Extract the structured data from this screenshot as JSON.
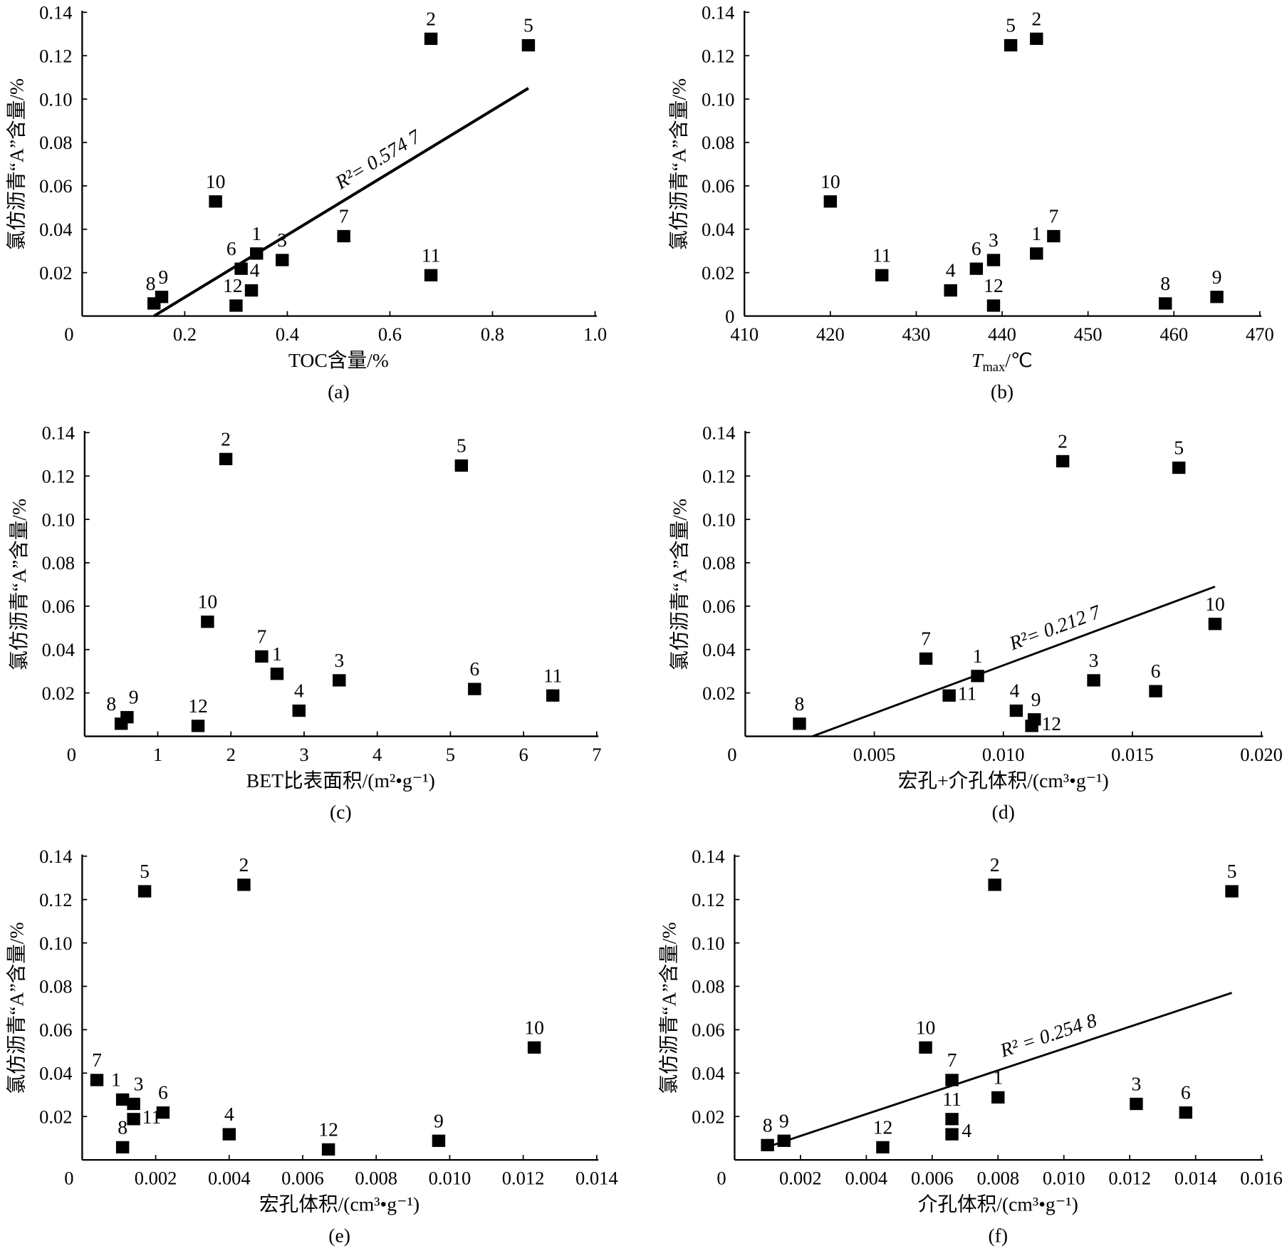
{
  "chart_data": [
    {
      "type": "scatter",
      "title": "(a)",
      "xlabel": "TOC含量/%",
      "ylabel": "氯仿沥青“A”含量/%",
      "xlim": [
        0,
        1.0
      ],
      "ylim": [
        0,
        0.14
      ],
      "xticks": [
        "0.2",
        "0.4",
        "0.6",
        "0.8",
        "1.0"
      ],
      "xtick_values": [
        0.2,
        0.4,
        0.6,
        0.8,
        1.0
      ],
      "yticks": [
        "0.02",
        "0.04",
        "0.06",
        "0.08",
        "0.10",
        "0.12",
        "0.14"
      ],
      "origin_label": "0",
      "points": [
        {
          "label": "1",
          "x": 0.34,
          "y": 0.029
        },
        {
          "label": "2",
          "x": 0.68,
          "y": 0.128
        },
        {
          "label": "3",
          "x": 0.39,
          "y": 0.026
        },
        {
          "label": "4",
          "x": 0.33,
          "y": 0.012
        },
        {
          "label": "5",
          "x": 0.87,
          "y": 0.125
        },
        {
          "label": "6",
          "x": 0.31,
          "y": 0.022
        },
        {
          "label": "7",
          "x": 0.51,
          "y": 0.037
        },
        {
          "label": "8",
          "x": 0.14,
          "y": 0.006
        },
        {
          "label": "9",
          "x": 0.155,
          "y": 0.009
        },
        {
          "label": "10",
          "x": 0.26,
          "y": 0.053
        },
        {
          "label": "11",
          "x": 0.68,
          "y": 0.019
        },
        {
          "label": "12",
          "x": 0.3,
          "y": 0.005
        }
      ],
      "fit": {
        "x": [
          0.14,
          0.87
        ],
        "y": [
          0.0,
          0.105
        ],
        "r2_label": "R²= 0.574 7"
      }
    },
    {
      "type": "scatter",
      "title": "(b)",
      "xlabel_parts": [
        "T",
        "max",
        "/℃"
      ],
      "ylabel": "氯仿沥青“A”含量/%",
      "xlim": [
        410,
        470
      ],
      "ylim": [
        0,
        0.14
      ],
      "xticks": [
        "410",
        "420",
        "430",
        "440",
        "450",
        "460",
        "470"
      ],
      "xtick_values": [
        410,
        420,
        430,
        440,
        450,
        460,
        470
      ],
      "yticks": [
        "0.02",
        "0.04",
        "0.06",
        "0.08",
        "0.10",
        "0.12",
        "0.14"
      ],
      "origin_label": "0",
      "points": [
        {
          "label": "1",
          "x": 444,
          "y": 0.029
        },
        {
          "label": "2",
          "x": 444,
          "y": 0.128
        },
        {
          "label": "3",
          "x": 439,
          "y": 0.026
        },
        {
          "label": "4",
          "x": 434,
          "y": 0.012
        },
        {
          "label": "5",
          "x": 441,
          "y": 0.125
        },
        {
          "label": "6",
          "x": 437,
          "y": 0.022
        },
        {
          "label": "7",
          "x": 446,
          "y": 0.037
        },
        {
          "label": "8",
          "x": 459,
          "y": 0.006
        },
        {
          "label": "9",
          "x": 465,
          "y": 0.009
        },
        {
          "label": "10",
          "x": 420,
          "y": 0.053
        },
        {
          "label": "11",
          "x": 426,
          "y": 0.019
        },
        {
          "label": "12",
          "x": 439,
          "y": 0.005
        }
      ]
    },
    {
      "type": "scatter",
      "title": "(c)",
      "xlabel": "BET比表面积/(m²•g⁻¹)",
      "ylabel": "氯仿沥青“A”含量/%",
      "xlim": [
        0,
        7
      ],
      "ylim": [
        0,
        0.14
      ],
      "xticks": [
        "1",
        "2",
        "3",
        "4",
        "5",
        "6",
        "7"
      ],
      "xtick_values": [
        1,
        2,
        3,
        4,
        5,
        6,
        7
      ],
      "yticks": [
        "0.02",
        "0.04",
        "0.06",
        "0.08",
        "0.10",
        "0.12",
        "0.14"
      ],
      "origin_label": "0",
      "points": [
        {
          "label": "1",
          "x": 2.63,
          "y": 0.029
        },
        {
          "label": "2",
          "x": 1.93,
          "y": 0.128
        },
        {
          "label": "3",
          "x": 3.48,
          "y": 0.026
        },
        {
          "label": "4",
          "x": 2.93,
          "y": 0.012
        },
        {
          "label": "5",
          "x": 5.15,
          "y": 0.125
        },
        {
          "label": "6",
          "x": 5.33,
          "y": 0.022
        },
        {
          "label": "7",
          "x": 2.42,
          "y": 0.037
        },
        {
          "label": "8",
          "x": 0.5,
          "y": 0.006
        },
        {
          "label": "9",
          "x": 0.58,
          "y": 0.009
        },
        {
          "label": "10",
          "x": 1.68,
          "y": 0.053
        },
        {
          "label": "11",
          "x": 6.4,
          "y": 0.019
        },
        {
          "label": "12",
          "x": 1.55,
          "y": 0.005
        }
      ]
    },
    {
      "type": "scatter",
      "title": "(d)",
      "xlabel": "宏孔+介孔体积/(cm³•g⁻¹)",
      "ylabel": "氯仿沥青“A”含量/%",
      "xlim": [
        0,
        0.02
      ],
      "ylim": [
        0,
        0.14
      ],
      "xticks": [
        "0.005",
        "0.010",
        "0.015",
        "0.020"
      ],
      "xtick_values": [
        0.005,
        0.01,
        0.015,
        0.02
      ],
      "yticks": [
        "0.02",
        "0.04",
        "0.06",
        "0.08",
        "0.10",
        "0.12",
        "0.14"
      ],
      "origin_label": "0",
      "points": [
        {
          "label": "1",
          "x": 0.009,
          "y": 0.028
        },
        {
          "label": "2",
          "x": 0.0123,
          "y": 0.127
        },
        {
          "label": "3",
          "x": 0.0135,
          "y": 0.026
        },
        {
          "label": "4",
          "x": 0.0105,
          "y": 0.012
        },
        {
          "label": "5",
          "x": 0.0168,
          "y": 0.124
        },
        {
          "label": "6",
          "x": 0.0159,
          "y": 0.021
        },
        {
          "label": "7",
          "x": 0.007,
          "y": 0.036
        },
        {
          "label": "8",
          "x": 0.0021,
          "y": 0.006
        },
        {
          "label": "9",
          "x": 0.0112,
          "y": 0.008
        },
        {
          "label": "10",
          "x": 0.0182,
          "y": 0.052
        },
        {
          "label": "11",
          "x": 0.0079,
          "y": 0.019
        },
        {
          "label": "12",
          "x": 0.0111,
          "y": 0.005
        }
      ],
      "fit": {
        "x": [
          0.0026,
          0.0182
        ],
        "y": [
          0.0,
          0.069
        ],
        "r2_label": "R²= 0.212 7"
      }
    },
    {
      "type": "scatter",
      "title": "(e)",
      "xlabel": "宏孔体积/(cm³•g⁻¹)",
      "ylabel": "氯仿沥青“A”含量/%",
      "xlim": [
        0,
        0.014
      ],
      "ylim": [
        0,
        0.14
      ],
      "xticks": [
        "0.002",
        "0.004",
        "0.006",
        "0.008",
        "0.010",
        "0.012",
        "0.014"
      ],
      "xtick_values": [
        0.002,
        0.004,
        0.006,
        0.008,
        0.01,
        0.012,
        0.014
      ],
      "yticks": [
        "0.02",
        "0.04",
        "0.06",
        "0.08",
        "0.10",
        "0.12",
        "0.14"
      ],
      "origin_label": "0",
      "points": [
        {
          "label": "1",
          "x": 0.0011,
          "y": 0.028
        },
        {
          "label": "2",
          "x": 0.0044,
          "y": 0.127
        },
        {
          "label": "3",
          "x": 0.0014,
          "y": 0.026
        },
        {
          "label": "4",
          "x": 0.004,
          "y": 0.012
        },
        {
          "label": "5",
          "x": 0.0017,
          "y": 0.124
        },
        {
          "label": "6",
          "x": 0.0022,
          "y": 0.022
        },
        {
          "label": "7",
          "x": 0.0004,
          "y": 0.037
        },
        {
          "label": "8",
          "x": 0.0011,
          "y": 0.006
        },
        {
          "label": "9",
          "x": 0.0097,
          "y": 0.009
        },
        {
          "label": "10",
          "x": 0.0123,
          "y": 0.052
        },
        {
          "label": "11",
          "x": 0.0014,
          "y": 0.019
        },
        {
          "label": "12",
          "x": 0.0067,
          "y": 0.005
        }
      ]
    },
    {
      "type": "scatter",
      "title": "(f)",
      "xlabel": "介孔体积/(cm³•g⁻¹)",
      "ylabel": "氯仿沥青“A”含量/%",
      "xlim": [
        0,
        0.016
      ],
      "ylim": [
        0,
        0.14
      ],
      "xticks": [
        "0.002",
        "0.004",
        "0.006",
        "0.008",
        "0.010",
        "0.012",
        "0.014",
        "0.016"
      ],
      "xtick_values": [
        0.002,
        0.004,
        0.006,
        0.008,
        0.01,
        0.012,
        0.014,
        0.016
      ],
      "yticks": [
        "0.02",
        "0.04",
        "0.06",
        "0.08",
        "0.10",
        "0.12",
        "0.14"
      ],
      "origin_label": "0",
      "points": [
        {
          "label": "1",
          "x": 0.008,
          "y": 0.029
        },
        {
          "label": "2",
          "x": 0.0079,
          "y": 0.127
        },
        {
          "label": "3",
          "x": 0.0122,
          "y": 0.026
        },
        {
          "label": "4",
          "x": 0.0066,
          "y": 0.012
        },
        {
          "label": "5",
          "x": 0.0151,
          "y": 0.124
        },
        {
          "label": "6",
          "x": 0.0137,
          "y": 0.022
        },
        {
          "label": "7",
          "x": 0.0066,
          "y": 0.037
        },
        {
          "label": "8",
          "x": 0.001,
          "y": 0.007
        },
        {
          "label": "9",
          "x": 0.0015,
          "y": 0.009
        },
        {
          "label": "10",
          "x": 0.0058,
          "y": 0.052
        },
        {
          "label": "11",
          "x": 0.0066,
          "y": 0.019
        },
        {
          "label": "12",
          "x": 0.0045,
          "y": 0.006
        }
      ],
      "fit": {
        "x": [
          0.001,
          0.0151
        ],
        "y": [
          0.006,
          0.077
        ],
        "r2_label": "R² = 0.254  8"
      }
    }
  ]
}
